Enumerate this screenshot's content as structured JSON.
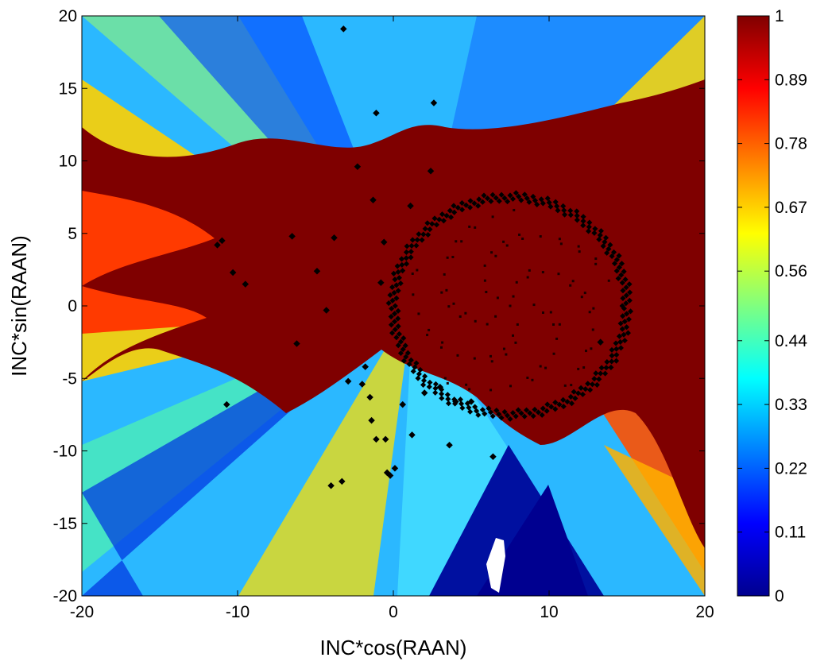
{
  "chart_data": {
    "type": "heatmap",
    "xlabel": "INC*cos(RAAN)",
    "ylabel": "INC*sin(RAAN)",
    "xlim": [
      -20,
      20
    ],
    "ylim": [
      -20,
      20
    ],
    "xticks": [
      "-20",
      "-10",
      "0",
      "10",
      "20"
    ],
    "xtick_values": [
      -20,
      -10,
      0,
      10,
      20
    ],
    "yticks": [
      "20",
      "15",
      "10",
      "5",
      "0",
      "-5",
      "-10",
      "-15",
      "-20"
    ],
    "ytick_values": [
      20,
      15,
      10,
      5,
      0,
      -5,
      -10,
      -15,
      -20
    ],
    "colorbar": {
      "range": [
        0,
        1
      ],
      "ticks": [
        "1",
        "0.89",
        "0.78",
        "0.67",
        "0.56",
        "0.44",
        "0.33",
        "0.22",
        "0.11",
        "0"
      ],
      "tick_values": [
        1,
        0.89,
        0.78,
        0.67,
        0.56,
        0.44,
        0.33,
        0.22,
        0.11,
        0
      ],
      "colormap": "jet"
    },
    "grid": false,
    "features": {
      "ring": {
        "center": [
          7.5,
          0
        ],
        "radius": 7.5
      },
      "saturated_band_value": 1,
      "low_region_value": 0.05
    },
    "points": [
      [
        -11,
        4.5
      ],
      [
        -11.3,
        4.2
      ],
      [
        -9.5,
        1.5
      ],
      [
        -10.3,
        2.3
      ],
      [
        -10.7,
        -6.8
      ],
      [
        -6.5,
        4.8
      ],
      [
        -4.3,
        -0.3
      ],
      [
        -3.8,
        4.7
      ],
      [
        -2.3,
        9.6
      ],
      [
        -1.8,
        -4.2
      ],
      [
        -1.5,
        -6.3
      ],
      [
        -2.0,
        -5.4
      ],
      [
        -1.4,
        -7.9
      ],
      [
        -1.1,
        -9.2
      ],
      [
        -0.8,
        1.6
      ],
      [
        -3.3,
        -12.1
      ],
      [
        -4.0,
        -12.4
      ],
      [
        -0.5,
        -9.2
      ],
      [
        -0.4,
        -11.5
      ],
      [
        -0.2,
        -11.7
      ],
      [
        0.1,
        -11.2
      ],
      [
        -1.1,
        13.3
      ],
      [
        2.6,
        14.0
      ],
      [
        3.6,
        -9.6
      ],
      [
        4.0,
        -6.6
      ],
      [
        3.0,
        -5.6
      ],
      [
        5.0,
        -6.6
      ],
      [
        2.0,
        -6.0
      ],
      [
        1.2,
        -8.9
      ],
      [
        6.4,
        -10.4
      ],
      [
        0.6,
        -6.8
      ],
      [
        -2.9,
        -5.2
      ],
      [
        -6.2,
        -2.6
      ],
      [
        -4.9,
        2.4
      ],
      [
        -1.3,
        7.3
      ],
      [
        -0.6,
        4.4
      ],
      [
        1.1,
        6.9
      ],
      [
        2.4,
        9.3
      ],
      [
        13.3,
        -2.5
      ],
      [
        -3.2,
        19.1
      ]
    ]
  }
}
